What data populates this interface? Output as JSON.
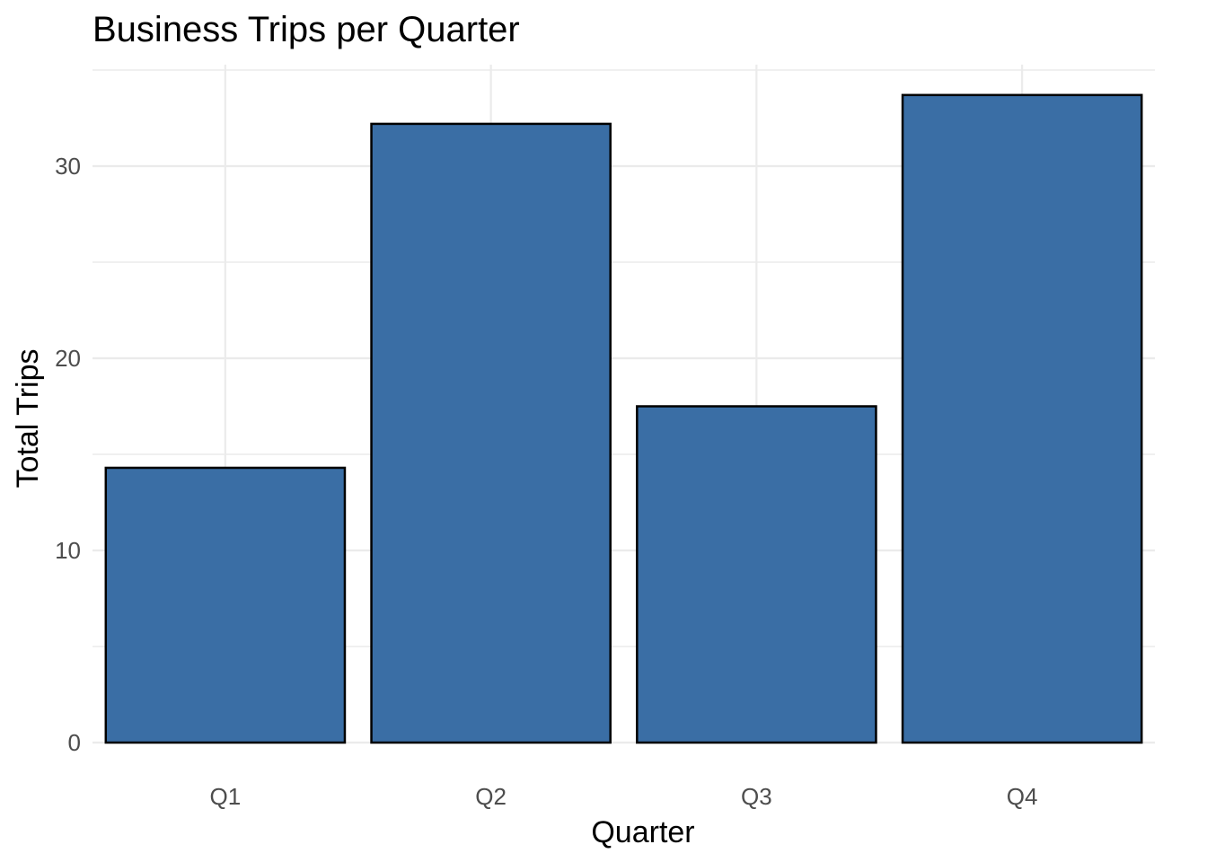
{
  "chart_data": {
    "type": "bar",
    "title": "Business Trips per Quarter",
    "xlabel": "Quarter",
    "ylabel": "Total Trips",
    "categories": [
      "Q1",
      "Q2",
      "Q3",
      "Q4"
    ],
    "values": [
      14.3,
      32.2,
      17.5,
      33.7
    ],
    "ylim": [
      0,
      35
    ],
    "yticks": [
      0,
      10,
      20,
      30
    ],
    "grid": true,
    "legend": "none",
    "bar_color": "#3A6EA5",
    "bar_outline_color": "#000000"
  }
}
